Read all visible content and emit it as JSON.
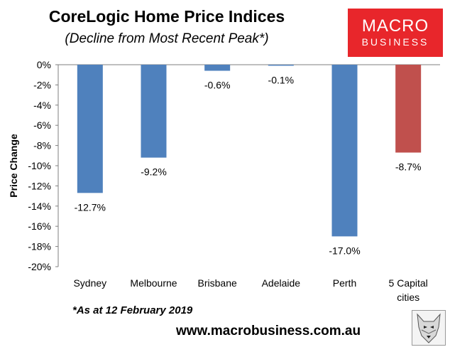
{
  "header": {
    "title": "CoreLogic Home Price Indices",
    "subtitle": "(Decline from Most Recent Peak*)"
  },
  "logo": {
    "line1": "MACRO",
    "line2": "BUSINESS"
  },
  "footer": {
    "footnote": "*As at 12 February 2019",
    "website": "www.macrobusiness.com.au",
    "mascot_icon": "wolf-head-icon"
  },
  "chart_data": {
    "type": "bar",
    "title": "CoreLogic Home Price Indices",
    "subtitle": "(Decline from Most Recent Peak*)",
    "ylabel": "Price Change",
    "xlabel": "",
    "ylim": [
      -20,
      0
    ],
    "yticks": [
      0,
      -2,
      -4,
      -6,
      -8,
      -10,
      -12,
      -14,
      -16,
      -18,
      -20
    ],
    "ytick_labels": [
      "0%",
      "-2%",
      "-4%",
      "-6%",
      "-8%",
      "-10%",
      "-12%",
      "-14%",
      "-16%",
      "-18%",
      "-20%"
    ],
    "categories": [
      "Sydney",
      "Melbourne",
      "Brisbane",
      "Adelaide",
      "Perth",
      "5 Capital cities"
    ],
    "category_lines": [
      [
        "Sydney"
      ],
      [
        "Melbourne"
      ],
      [
        "Brisbane"
      ],
      [
        "Adelaide"
      ],
      [
        "Perth"
      ],
      [
        "5 Capital",
        "cities"
      ]
    ],
    "values": [
      -12.7,
      -9.2,
      -0.6,
      -0.1,
      -17.0,
      -8.7
    ],
    "data_labels": [
      "-12.7%",
      "-9.2%",
      "-0.6%",
      "-0.1%",
      "-17.0%",
      "-8.7%"
    ],
    "bar_colors": [
      "#4f81bd",
      "#4f81bd",
      "#4f81bd",
      "#4f81bd",
      "#4f81bd",
      "#c0504d"
    ],
    "grid": false,
    "legend": "none"
  }
}
